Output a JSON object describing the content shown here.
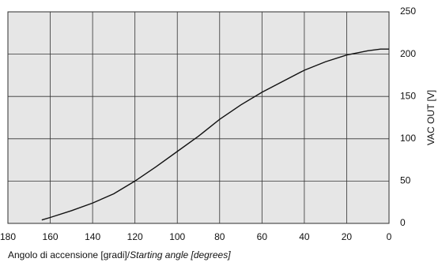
{
  "chart_data": {
    "type": "line",
    "x_label": [
      "Angolo di accensione [gradi]/",
      "Starting angle [degrees]"
    ],
    "y_label": "VAC OUT [V]",
    "x": [
      164,
      160,
      150,
      140,
      130,
      120,
      110,
      100,
      90,
      80,
      70,
      60,
      50,
      40,
      30,
      20,
      10,
      4,
      0
    ],
    "series": [
      {
        "name": "VAC OUT",
        "color": "#111111",
        "values": [
          4,
          7,
          15,
          24,
          35,
          50,
          67,
          85,
          103,
          123,
          140,
          155,
          168,
          181,
          191,
          199,
          204,
          206,
          206
        ]
      }
    ],
    "xlim": [
      180,
      0
    ],
    "xticks": [
      180,
      160,
      140,
      120,
      100,
      80,
      60,
      40,
      20,
      0
    ],
    "ylim": [
      0,
      250
    ],
    "yticks": [
      0,
      50,
      100,
      150,
      200,
      250
    ],
    "grid": true,
    "plot_color": "#e6e6e6"
  }
}
